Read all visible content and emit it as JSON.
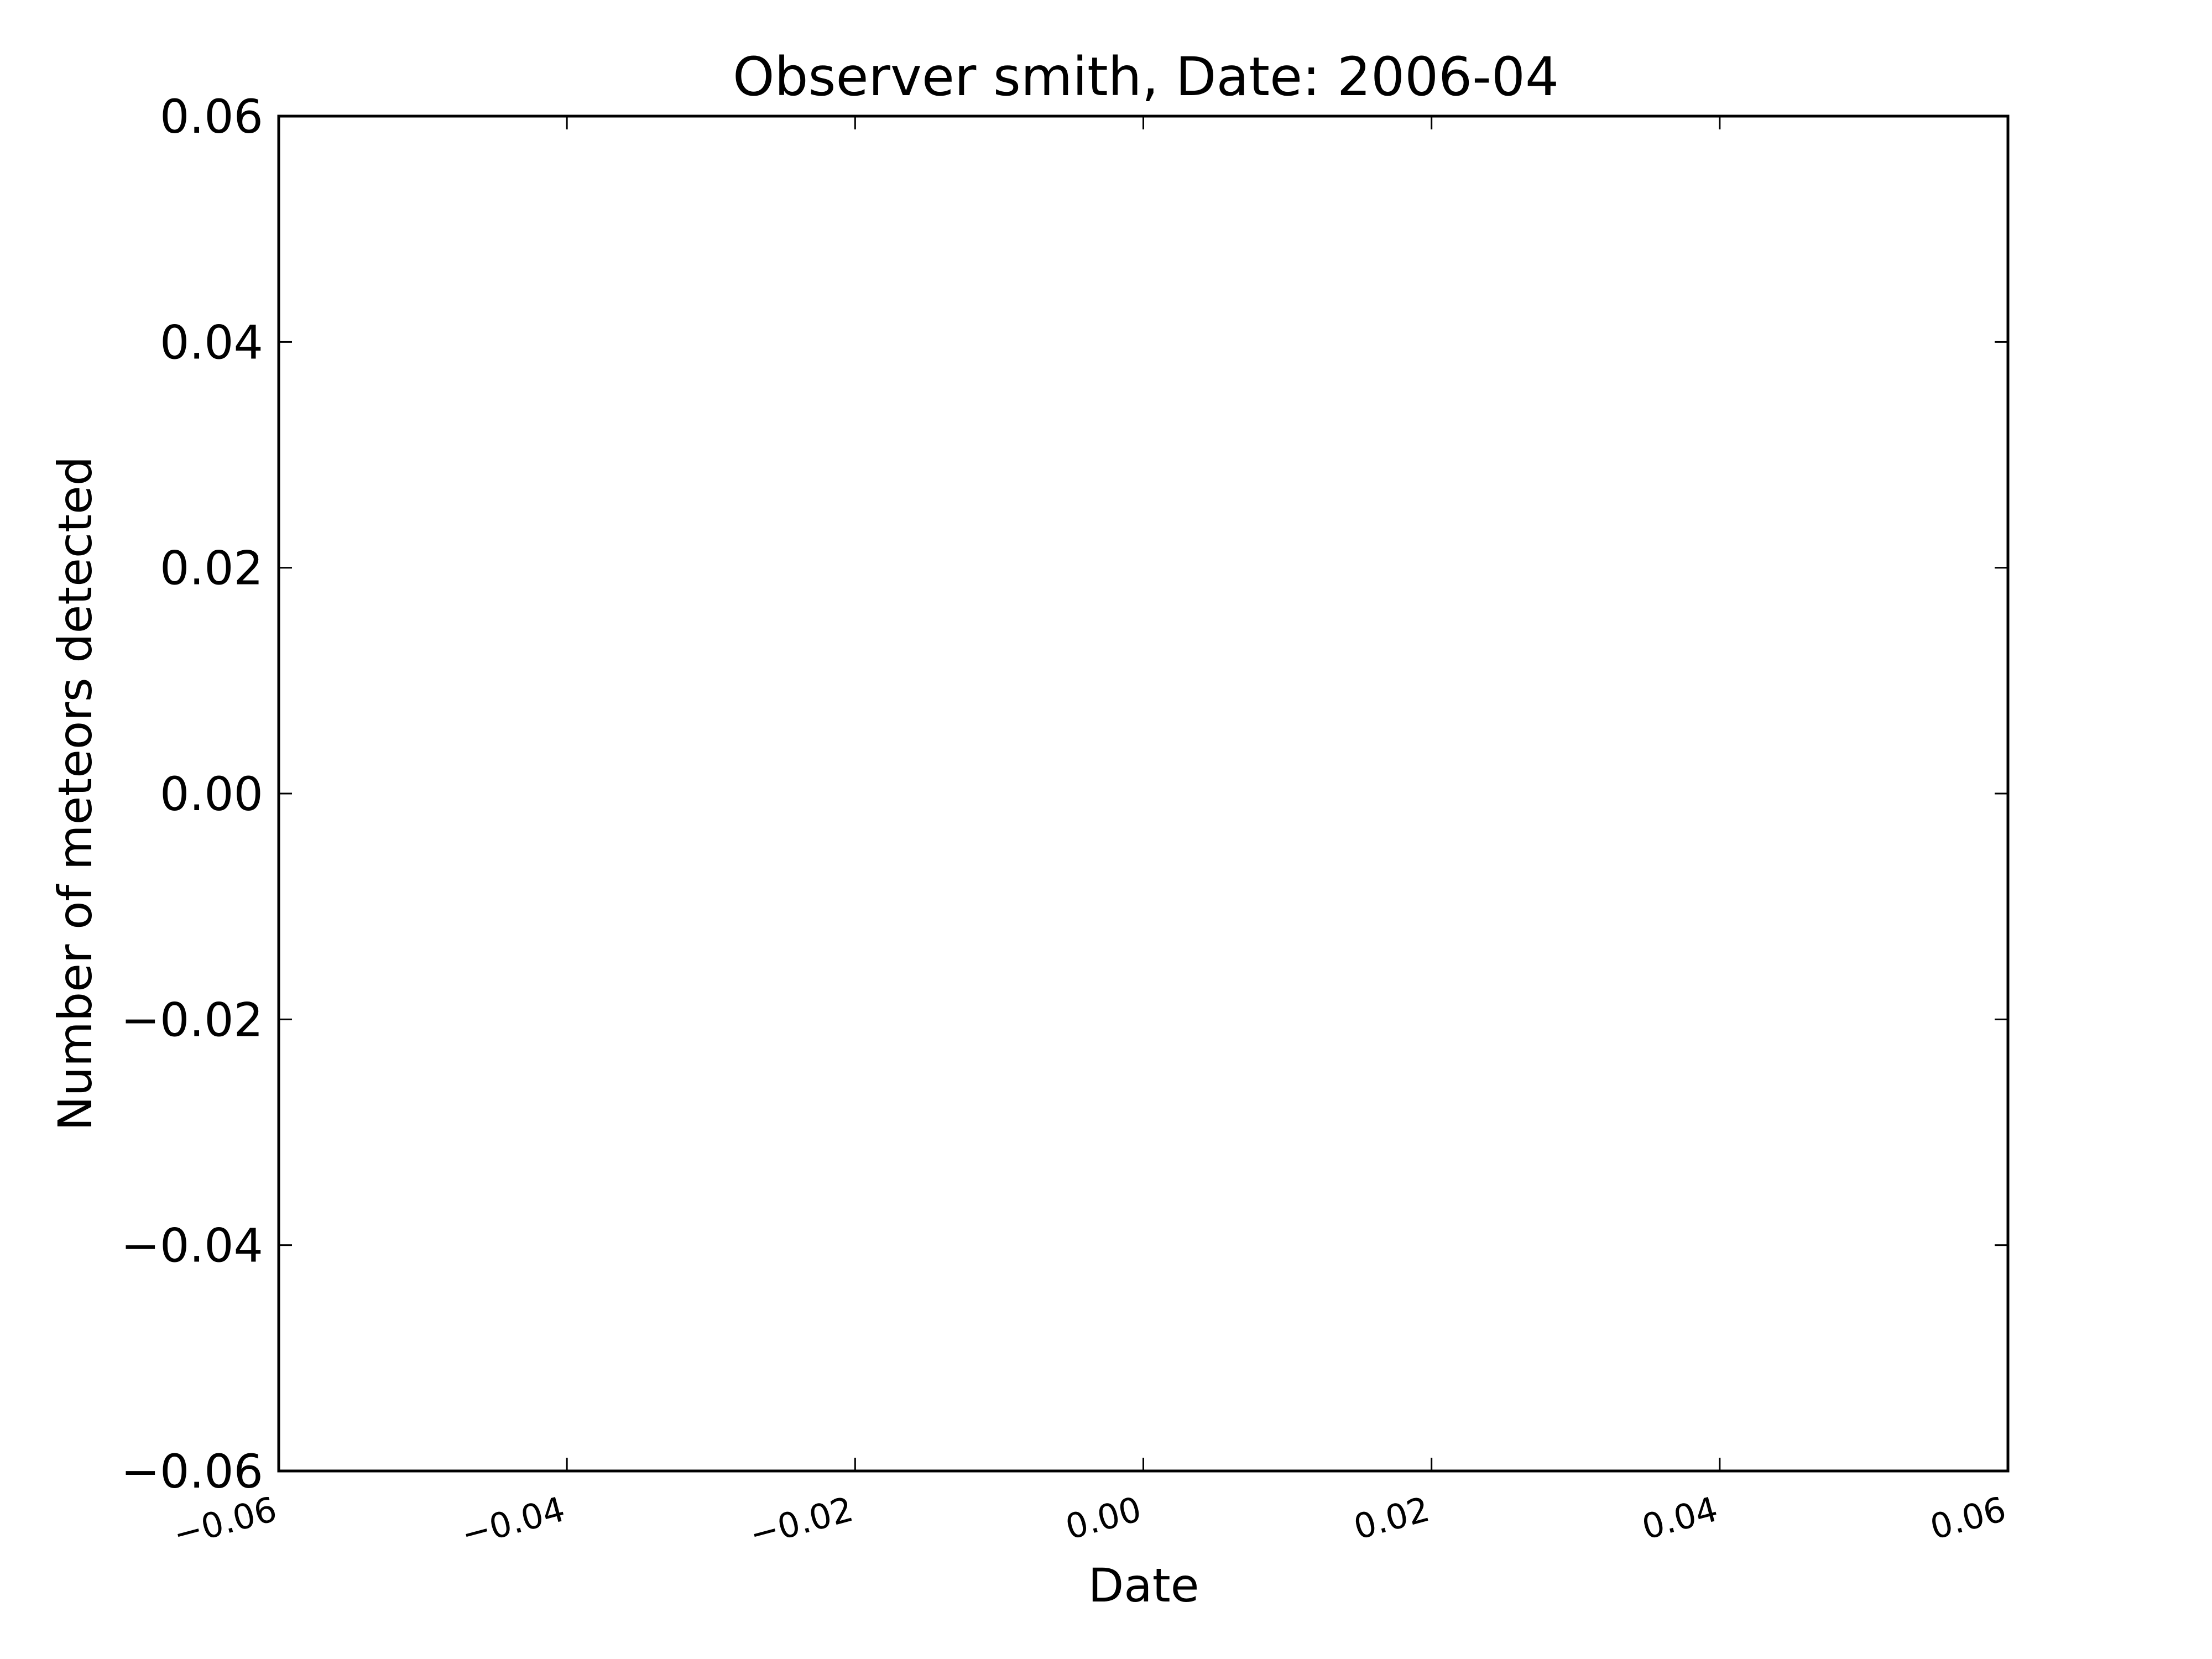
{
  "chart_data": {
    "type": "line",
    "title": "Observer smith, Date: 2006-04",
    "xlabel": "Date",
    "ylabel": "Number of meteors detected",
    "xlim": [
      -0.06,
      0.06
    ],
    "ylim": [
      -0.06,
      0.06
    ],
    "x_ticks": [
      -0.06,
      -0.04,
      -0.02,
      0.0,
      0.02,
      0.04,
      0.06
    ],
    "x_tick_labels": [
      "−0.06",
      "−0.04",
      "−0.02",
      "0.00",
      "0.02",
      "0.04",
      "0.06"
    ],
    "y_ticks": [
      0.06,
      0.04,
      0.02,
      0.0,
      -0.02,
      -0.04,
      -0.06
    ],
    "y_tick_labels": [
      "0.06",
      "0.04",
      "0.02",
      "0.00",
      "−0.02",
      "−0.04",
      "−0.06"
    ],
    "series": [],
    "grid": false
  }
}
